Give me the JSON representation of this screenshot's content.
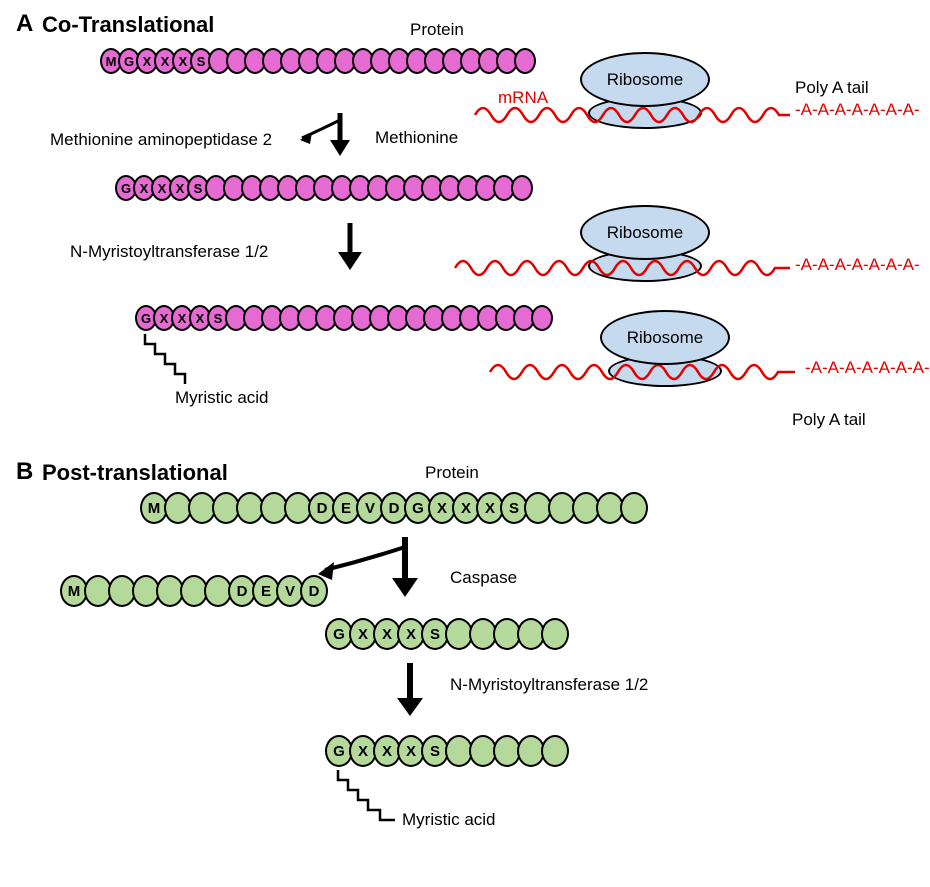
{
  "panelA": {
    "letter": "A",
    "title": "Co-Translational",
    "protein_label": "Protein",
    "mrna_label": "mRNA",
    "ribosome_label": "Ribosome",
    "polyA_label": "Poly A tail",
    "polyA_seq": "-A-A-A-A-A-A-A-",
    "map2_label": "Methionine aminopeptidase 2",
    "methionine_label": "Methionine",
    "nmt_label": "N-Myristoyltransferase 1/2",
    "myristic_label": "Myristic acid",
    "seq1": [
      "M",
      "G",
      "X",
      "X",
      "X",
      "S",
      "",
      "",
      "",
      "",
      "",
      "",
      "",
      "",
      "",
      "",
      "",
      "",
      "",
      "",
      "",
      "",
      "",
      ""
    ],
    "seq2": [
      "G",
      "X",
      "X",
      "X",
      "S",
      "",
      "",
      "",
      "",
      "",
      "",
      "",
      "",
      "",
      "",
      "",
      "",
      "",
      "",
      "",
      "",
      "",
      ""
    ],
    "seq3": [
      "G",
      "X",
      "X",
      "X",
      "S",
      "",
      "",
      "",
      "",
      "",
      "",
      "",
      "",
      "",
      "",
      "",
      "",
      "",
      "",
      "",
      "",
      "",
      ""
    ],
    "colors": {
      "bead": "#e56bd3",
      "mrna": "#e30000",
      "ribosome": "#c5d9ef"
    }
  },
  "panelB": {
    "letter": "B",
    "title": "Post-translational",
    "protein_label": "Protein",
    "seq1": [
      "M",
      "",
      "",
      "",
      "",
      "",
      "",
      "D",
      "E",
      "V",
      "D",
      "G",
      "X",
      "X",
      "X",
      "S",
      "",
      "",
      "",
      "",
      ""
    ],
    "cleaved": [
      "M",
      "",
      "",
      "",
      "",
      "",
      "",
      "D",
      "E",
      "V",
      "D"
    ],
    "seq2": [
      "G",
      "X",
      "X",
      "X",
      "S",
      "",
      "",
      "",
      "",
      ""
    ],
    "seq3": [
      "G",
      "X",
      "X",
      "X",
      "S",
      "",
      "",
      "",
      "",
      ""
    ],
    "caspase_label": "Caspase",
    "nmt_label": "N-Myristoyltransferase  1/2",
    "myristic_label": "Myristic acid",
    "colors": {
      "bead": "#b5d99b"
    }
  },
  "style": {
    "panel_letter_fontsize": 24,
    "panel_title_fontsize": 22,
    "label_fontsize": 17,
    "background_color": "#ffffff",
    "stroke_color": "#000000",
    "mrna_color": "#e30000"
  }
}
